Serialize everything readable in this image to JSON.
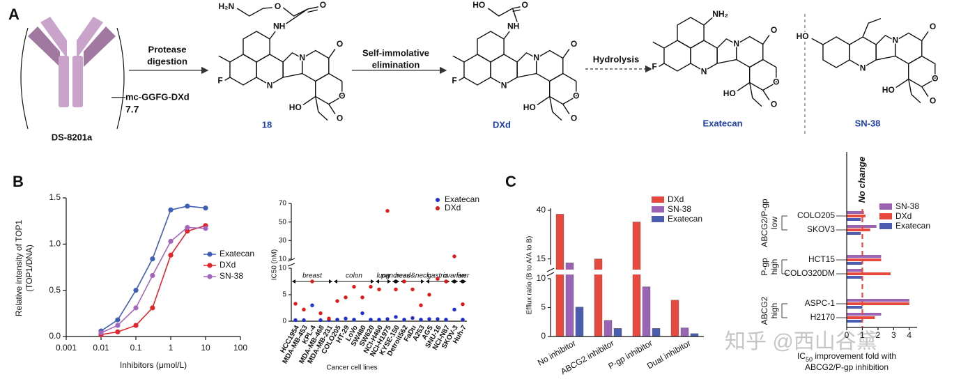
{
  "panel_labels": [
    "A",
    "B",
    "C"
  ],
  "panel_a": {
    "antibody": "DS-8201a",
    "linker": "mc-GGFG-DXd",
    "dar": "7.7",
    "steps": [
      [
        "Protease",
        "digestion"
      ],
      [
        "Self-immolative",
        "elimination"
      ],
      [
        "Hydrolysis"
      ]
    ],
    "compounds": [
      {
        "name": "18",
        "atoms": [
          "H₂N",
          "O",
          "O",
          "NH",
          "F",
          "N",
          "N",
          "O",
          "O",
          "O",
          "HO"
        ]
      },
      {
        "name": "DXd",
        "atoms": [
          "HO",
          "O",
          "NH",
          "F",
          "N",
          "N",
          "O",
          "O",
          "O",
          "HO"
        ]
      },
      {
        "name": "Exatecan",
        "atoms": [
          "NH₂",
          "F",
          "N",
          "N",
          "O",
          "O",
          "O",
          "HO"
        ]
      },
      {
        "name": "SN-38",
        "atoms": [
          "HO",
          "N",
          "N",
          "O",
          "O",
          "O",
          "HO"
        ]
      }
    ]
  },
  "chart_data": [
    {
      "type": "line",
      "xscale": "log",
      "ylabel": [
        "Relative intensity of TOP1",
        "(TOP1/DNA)"
      ],
      "xlabel": "Inhibitors (μmol/L)",
      "x": [
        0.01,
        0.03,
        0.1,
        0.3,
        1,
        3,
        10
      ],
      "series": [
        {
          "name": "Exatecan",
          "color": "#3f5fb5",
          "values": [
            0.06,
            0.18,
            0.5,
            0.84,
            1.37,
            1.41,
            1.39
          ]
        },
        {
          "name": "DXd",
          "color": "#e0262a",
          "values": [
            0.02,
            0.05,
            0.12,
            0.31,
            0.88,
            1.14,
            1.2
          ]
        },
        {
          "name": "SN-38",
          "color": "#a367bd",
          "values": [
            0.04,
            0.12,
            0.31,
            0.66,
            1.03,
            1.18,
            1.17
          ]
        }
      ],
      "xlim": [
        0.001,
        100
      ],
      "xticks": [
        0.001,
        0.01,
        0.1,
        1,
        10,
        100
      ],
      "ylim": [
        0,
        1.5
      ],
      "yticks": [
        {
          "value": 0,
          "label": "0.0"
        },
        0.5,
        {
          "value": 1,
          "label": "1.0"
        },
        1.5
      ]
    },
    {
      "type": "scatter",
      "ylabel": "IC50 (nM)",
      "xlabel": "Cancer cell lines",
      "categories": [
        "HCC1954",
        "MDA-MB-453",
        "KPL-4",
        "MDA-MB-468",
        "MDA-MB-231",
        "COLO205",
        "HT-29",
        "LoVo",
        "SW480",
        "SW620",
        "NCI-H460",
        "NCI-H1975",
        "KYSE-150",
        "Detroit562",
        "FaDu",
        "A253",
        "AGS",
        "SNU-16",
        "NCI-N87",
        "SKOV-3",
        "Huh-7"
      ],
      "groups": [
        {
          "label": "breast",
          "count": 5
        },
        {
          "label": "colon",
          "count": 5
        },
        {
          "label": "lung",
          "count": 2
        },
        {
          "label": "pancreas",
          "count": 1
        },
        {
          "label": "head&neck",
          "count": 3
        },
        {
          "label": "gastric",
          "count": 3
        },
        {
          "label": "ovarian",
          "count": 1
        },
        {
          "label": "liver",
          "count": 1
        }
      ],
      "series": [
        {
          "name": "Exatecan",
          "color": "#1f2fd0",
          "values": [
            0.2,
            0.2,
            3,
            0.2,
            0.2,
            0.3,
            0.5,
            0.3,
            1.5,
            0.3,
            0.3,
            0.4,
            0.8,
            0.3,
            0.6,
            0.3,
            0.4,
            0.4,
            0.3,
            2.2,
            0.3
          ]
        },
        {
          "name": "DXd",
          "color": "#e01818",
          "values": [
            3.3,
            2.2,
            7.5,
            1.5,
            0.5,
            3.8,
            4.5,
            6.5,
            4.5,
            6.5,
            6,
            62,
            6,
            7.5,
            6,
            3,
            5,
            8,
            7.5,
            13,
            3.2
          ]
        }
      ],
      "ylim_lower": [
        0,
        10
      ],
      "yticks_lower": [
        0,
        5,
        10
      ],
      "ylim_upper": [
        10,
        70
      ],
      "yticks_upper": [
        10,
        30,
        50,
        70
      ]
    },
    {
      "type": "bar",
      "orientation": "vertical",
      "ylabel": "Efflux ratio (B to A/A to B)",
      "categories": [
        "No inhibitor",
        "ABCG2 inhibitor",
        "P-gp inhibitor",
        "Dual inhibitor"
      ],
      "series": [
        {
          "name": "DXd",
          "color": "#e8493e",
          "values": [
            38,
            15,
            34,
            6.3
          ]
        },
        {
          "name": "SN-38",
          "color": "#9b63b3",
          "values": [
            13,
            2.8,
            8.6,
            1.5
          ]
        },
        {
          "name": "Exatecan",
          "color": "#4a5db0",
          "values": [
            5.1,
            1.4,
            1.4,
            0.5
          ]
        }
      ],
      "ylim_lower": [
        0,
        10
      ],
      "yticks_lower": [
        0,
        5,
        10
      ],
      "ylim_upper": [
        12,
        41
      ],
      "yticks_upper": [
        15,
        40
      ]
    },
    {
      "type": "bar",
      "orientation": "horizontal",
      "xlabel": [
        "IC",
        "50",
        " improvement fold with",
        "ABCG2/P-gp inhibition"
      ],
      "categories": [
        "COLO205",
        "SKOV3",
        "HCT15",
        "COLO320DM",
        "ASPC-1",
        "H2170"
      ],
      "groups": [
        {
          "label": [
            "ABCG2/P-gp",
            "low"
          ],
          "count": 2
        },
        {
          "label": [
            "P-gp",
            "high"
          ],
          "count": 2
        },
        {
          "label": [
            "ABCG2",
            "high"
          ],
          "count": 2
        }
      ],
      "series": [
        {
          "name": "SN-38",
          "color": "#9b63b3",
          "values": [
            1.1,
            1.9,
            2.2,
            1.0,
            4.0,
            2.2
          ]
        },
        {
          "name": "DXd",
          "color": "#e8493e",
          "values": [
            1.2,
            1.5,
            2.2,
            2.8,
            4.0,
            1.8
          ]
        },
        {
          "name": "Exatecan",
          "color": "#4a5db0",
          "values": [
            0.9,
            0.9,
            1.0,
            1.0,
            1.0,
            1.0
          ]
        }
      ],
      "xlim": [
        0,
        4.5
      ],
      "xticks": [
        0,
        1,
        2,
        3,
        4
      ],
      "reference": {
        "value": 1,
        "label": "No change",
        "color": "#e8493e"
      }
    }
  ],
  "watermark": "知乎 @西山谷黛"
}
